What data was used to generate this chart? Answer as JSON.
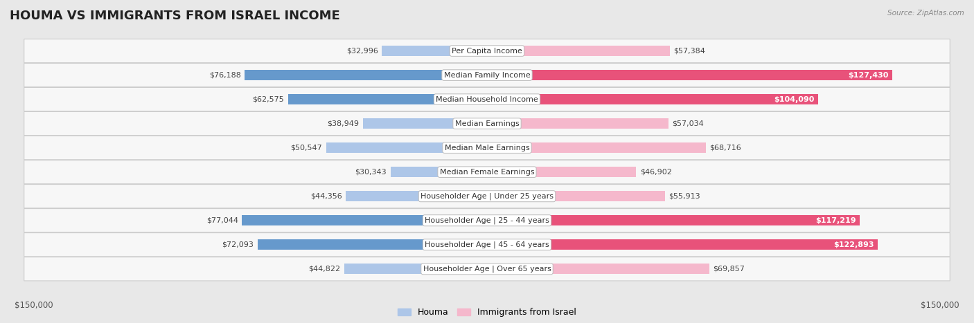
{
  "title": "HOUMA VS IMMIGRANTS FROM ISRAEL INCOME",
  "source": "Source: ZipAtlas.com",
  "categories": [
    "Per Capita Income",
    "Median Family Income",
    "Median Household Income",
    "Median Earnings",
    "Median Male Earnings",
    "Median Female Earnings",
    "Householder Age | Under 25 years",
    "Householder Age | 25 - 44 years",
    "Householder Age | 45 - 64 years",
    "Householder Age | Over 65 years"
  ],
  "houma_values": [
    32996,
    76188,
    62575,
    38949,
    50547,
    30343,
    44356,
    77044,
    72093,
    44822
  ],
  "israel_values": [
    57384,
    127430,
    104090,
    57034,
    68716,
    46902,
    55913,
    117219,
    122893,
    69857
  ],
  "houma_color_light": "#adc6e8",
  "houma_color_dark": "#6699cc",
  "israel_color_light": "#f5b8cc",
  "israel_color_dark": "#e8527a",
  "max_value": 150000,
  "bg_color": "#e8e8e8",
  "row_bg": "#f7f7f7",
  "row_border": "#cccccc",
  "title_fontsize": 13,
  "label_fontsize": 8,
  "value_fontsize": 8,
  "legend_fontsize": 9,
  "axis_label": "$150,000"
}
